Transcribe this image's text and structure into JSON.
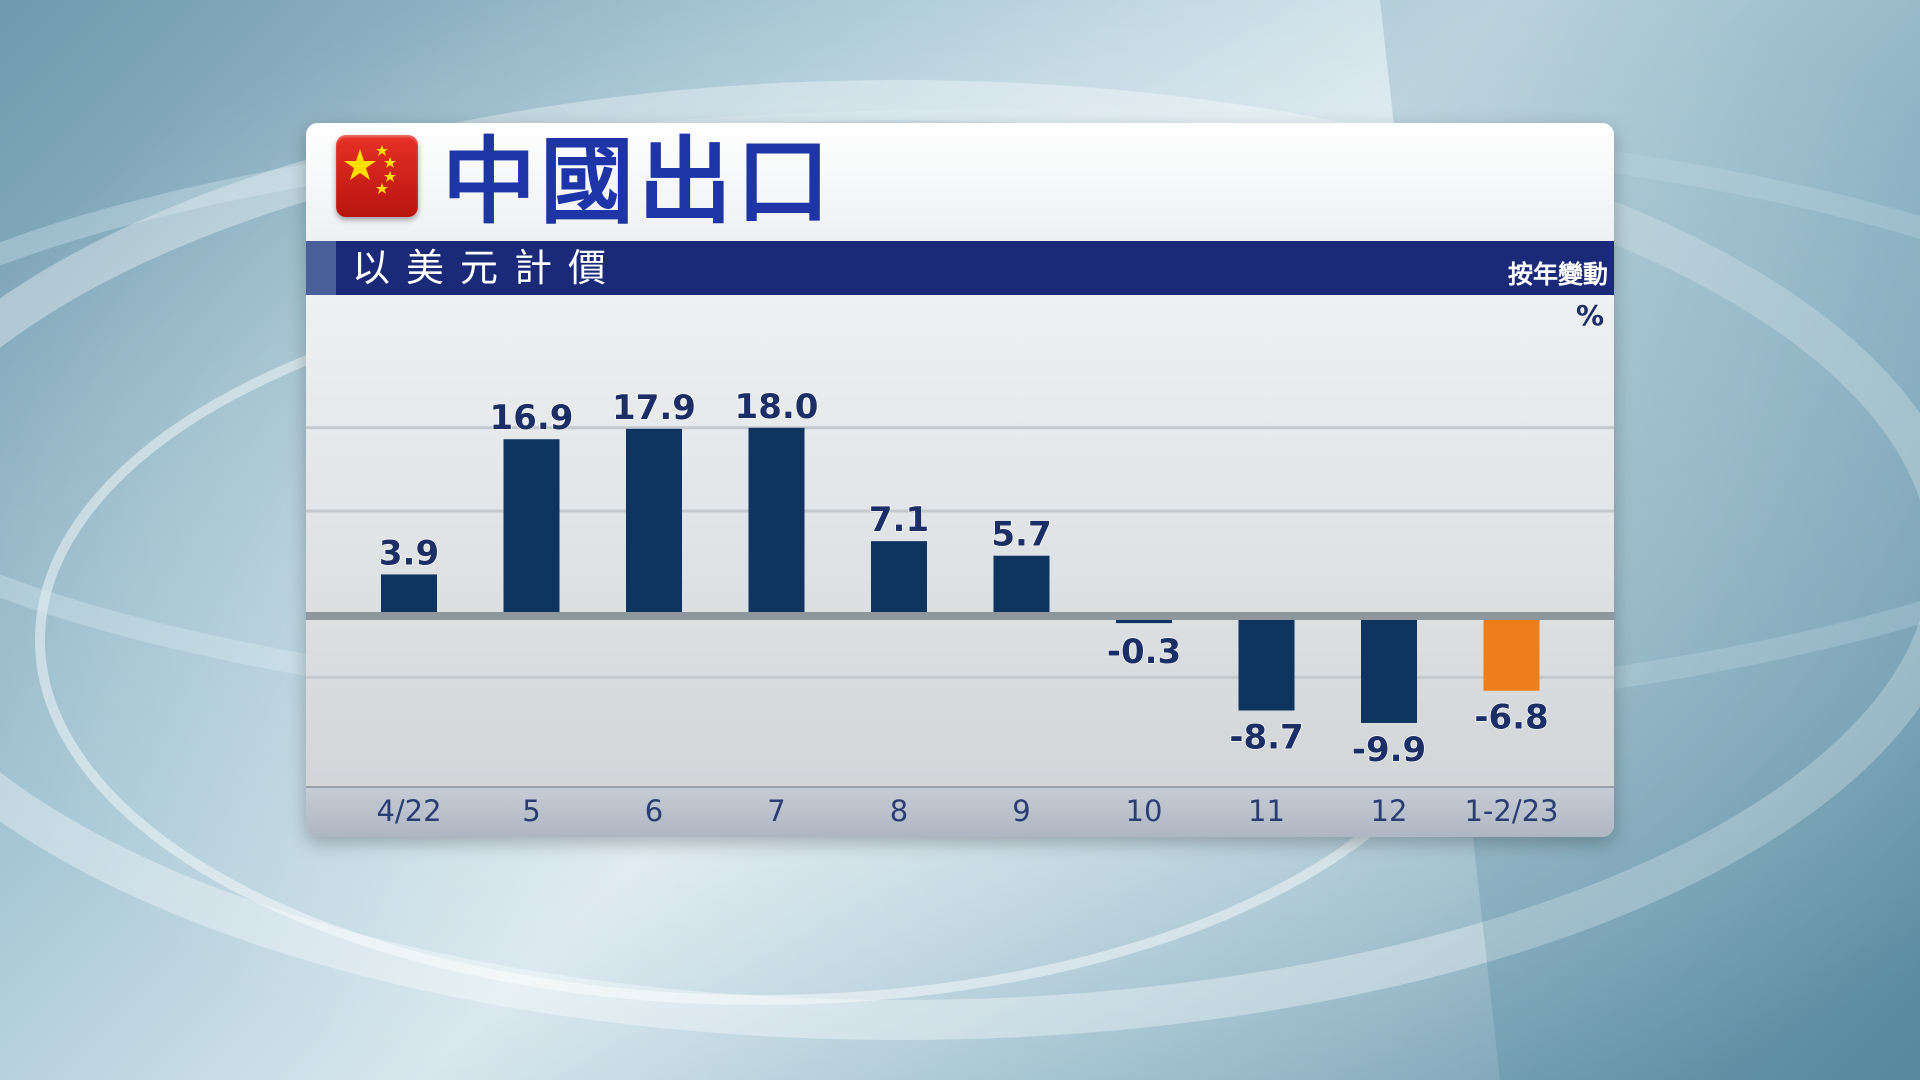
{
  "title": "中國出口",
  "subtitle": "以美元計價",
  "header_right_label": "按年變動",
  "unit_label": "%",
  "colors": {
    "bar": "#0f3460",
    "highlight_bar": "#ee7d1a",
    "label": "#1b2f66",
    "header_bar": "#1a2a78",
    "title": "#1e35a8"
  },
  "chart_data": {
    "type": "bar",
    "categories": [
      "4/22",
      "5",
      "6",
      "7",
      "8",
      "9",
      "10",
      "11",
      "12",
      "1-2/23"
    ],
    "values": [
      3.9,
      16.9,
      17.9,
      18.0,
      7.1,
      5.7,
      -0.3,
      -8.7,
      -9.9,
      -6.8
    ],
    "value_labels": [
      "3.9",
      "16.9",
      "17.9",
      "18.0",
      "7.1",
      "5.7",
      "-0.3",
      "-8.7",
      "-9.9",
      "-6.8"
    ],
    "highlight_index": 9,
    "ylabel": "按年變動",
    "unit": "%",
    "ylim": [
      -14,
      25
    ],
    "grid": true,
    "legend": "none"
  }
}
